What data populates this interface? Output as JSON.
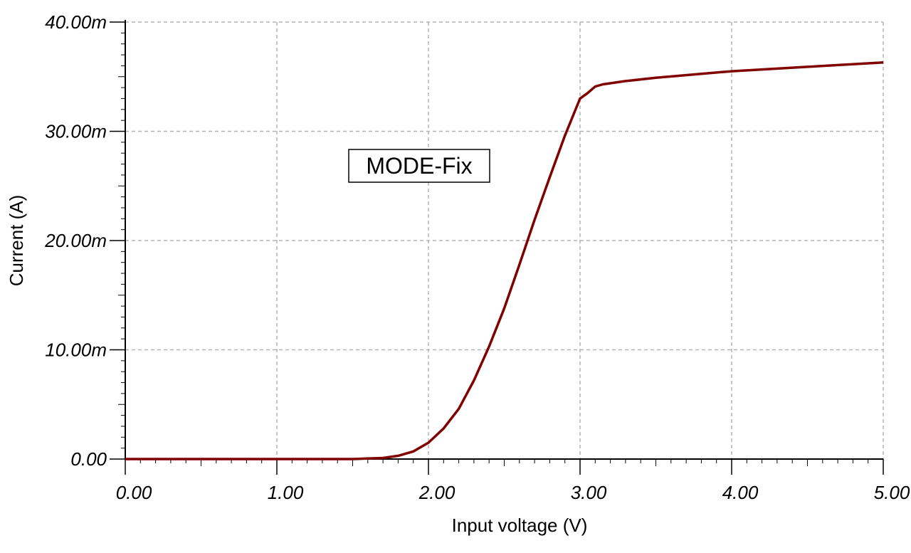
{
  "chart_data": {
    "type": "line",
    "title": "",
    "xlabel": "Input voltage (V)",
    "ylabel": "Current (A)",
    "xlim": [
      0,
      5
    ],
    "ylim": [
      0,
      0.04
    ],
    "grid": true,
    "x_ticks": [
      0,
      1,
      2,
      3,
      4,
      5
    ],
    "x_tick_labels": [
      "0.00",
      "1.00",
      "2.00",
      "3.00",
      "4.00",
      "5.00"
    ],
    "y_ticks": [
      0,
      0.01,
      0.02,
      0.03,
      0.04
    ],
    "y_tick_labels": [
      "0.00",
      "10.00m",
      "20.00m",
      "30.00m",
      "40.00m"
    ],
    "annotation": "MODE-Fix",
    "line_color": "#800000",
    "series": [
      {
        "x": [
          0.0,
          0.5,
          1.0,
          1.5,
          1.7,
          1.8,
          1.9,
          2.0,
          2.1,
          2.2,
          2.3,
          2.4,
          2.5,
          2.6,
          2.7,
          2.8,
          2.9,
          3.0,
          3.05,
          3.1,
          3.15,
          3.2,
          3.3,
          3.5,
          4.0,
          4.5,
          5.0
        ],
        "y": [
          0.0,
          0.0,
          0.0,
          0.0,
          0.0001,
          0.0003,
          0.0007,
          0.0015,
          0.0028,
          0.0046,
          0.0072,
          0.0103,
          0.0138,
          0.0178,
          0.0219,
          0.0258,
          0.0296,
          0.033,
          0.0335,
          0.0341,
          0.0343,
          0.0344,
          0.0346,
          0.0349,
          0.0355,
          0.0359,
          0.0363
        ]
      }
    ]
  }
}
